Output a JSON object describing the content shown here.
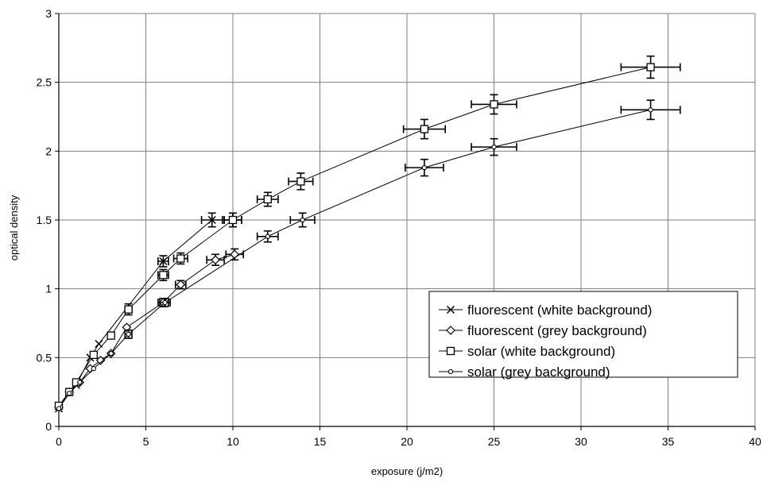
{
  "chart_data": {
    "type": "scatter",
    "title": "",
    "xlabel": "exposure (j/m2)",
    "ylabel": "optical density",
    "xlim": [
      0,
      40
    ],
    "ylim": [
      0,
      3
    ],
    "xticks": [
      0,
      5,
      10,
      15,
      20,
      25,
      30,
      35,
      40
    ],
    "yticks": [
      0,
      0.5,
      1,
      1.5,
      2,
      2.5,
      3
    ],
    "xtick_labels": [
      "0",
      "5",
      "10",
      "15",
      "20",
      "25",
      "30",
      "35",
      "40"
    ],
    "ytick_labels": [
      "0",
      "0.5",
      "1",
      "1.5",
      "2",
      "2.5",
      "3"
    ],
    "grid": true,
    "legend_position": "bottom-right",
    "series": [
      {
        "name": "fluorescent (white background)",
        "marker": "x",
        "points": [
          {
            "x": 0,
            "y": 0.13,
            "xerr": 0,
            "yerr": 0
          },
          {
            "x": 0.6,
            "y": 0.25,
            "xerr": 0,
            "yerr": 0
          },
          {
            "x": 1.0,
            "y": 0.3,
            "xerr": 0,
            "yerr": 0
          },
          {
            "x": 1.8,
            "y": 0.5,
            "xerr": 0,
            "yerr": 0
          },
          {
            "x": 2.3,
            "y": 0.6,
            "xerr": 0,
            "yerr": 0
          },
          {
            "x": 6.0,
            "y": 1.2,
            "xerr": 0.3,
            "yerr": 0.04
          },
          {
            "x": 8.8,
            "y": 1.5,
            "xerr": 0.6,
            "yerr": 0.05
          },
          {
            "x": 10.0,
            "y": 1.5,
            "xerr": 0.5,
            "yerr": 0.05
          }
        ]
      },
      {
        "name": "fluorescent (grey background)",
        "marker": "diamond",
        "points": [
          {
            "x": 0,
            "y": 0.14,
            "xerr": 0,
            "yerr": 0
          },
          {
            "x": 0.6,
            "y": 0.25,
            "xerr": 0,
            "yerr": 0
          },
          {
            "x": 1.2,
            "y": 0.32,
            "xerr": 0,
            "yerr": 0
          },
          {
            "x": 1.8,
            "y": 0.42,
            "xerr": 0,
            "yerr": 0
          },
          {
            "x": 2.4,
            "y": 0.48,
            "xerr": 0,
            "yerr": 0
          },
          {
            "x": 3.0,
            "y": 0.53,
            "xerr": 0,
            "yerr": 0
          },
          {
            "x": 3.9,
            "y": 0.72,
            "xerr": 0,
            "yerr": 0
          },
          {
            "x": 6.0,
            "y": 0.9,
            "xerr": 0.3,
            "yerr": 0.03
          },
          {
            "x": 7.0,
            "y": 1.03,
            "xerr": 0.3,
            "yerr": 0.03
          },
          {
            "x": 9.0,
            "y": 1.21,
            "xerr": 0.5,
            "yerr": 0.04
          },
          {
            "x": 10.1,
            "y": 1.25,
            "xerr": 0.5,
            "yerr": 0.04
          }
        ]
      },
      {
        "name": "solar (white background)",
        "marker": "square",
        "points": [
          {
            "x": 0,
            "y": 0.15,
            "xerr": 0,
            "yerr": 0
          },
          {
            "x": 0.6,
            "y": 0.25,
            "xerr": 0,
            "yerr": 0
          },
          {
            "x": 1.0,
            "y": 0.32,
            "xerr": 0,
            "yerr": 0
          },
          {
            "x": 2.0,
            "y": 0.52,
            "xerr": 0,
            "yerr": 0
          },
          {
            "x": 3.0,
            "y": 0.66,
            "xerr": 0,
            "yerr": 0
          },
          {
            "x": 4.0,
            "y": 0.85,
            "xerr": 0.2,
            "yerr": 0.04
          },
          {
            "x": 6.0,
            "y": 1.1,
            "xerr": 0.3,
            "yerr": 0.04
          },
          {
            "x": 7.0,
            "y": 1.22,
            "xerr": 0.4,
            "yerr": 0.04
          },
          {
            "x": 10.0,
            "y": 1.5,
            "xerr": 0.5,
            "yerr": 0.05
          },
          {
            "x": 12.0,
            "y": 1.65,
            "xerr": 0.6,
            "yerr": 0.05
          },
          {
            "x": 13.9,
            "y": 1.78,
            "xerr": 0.7,
            "yerr": 0.06
          },
          {
            "x": 21.0,
            "y": 2.16,
            "xerr": 1.2,
            "yerr": 0.07
          },
          {
            "x": 25.0,
            "y": 2.34,
            "xerr": 1.3,
            "yerr": 0.07
          },
          {
            "x": 34.0,
            "y": 2.61,
            "xerr": 1.7,
            "yerr": 0.08
          }
        ]
      },
      {
        "name": "solar (grey background)",
        "marker": "circle",
        "points": [
          {
            "x": 0,
            "y": 0.13,
            "xerr": 0,
            "yerr": 0
          },
          {
            "x": 0.6,
            "y": 0.24,
            "xerr": 0,
            "yerr": 0
          },
          {
            "x": 1.2,
            "y": 0.32,
            "xerr": 0,
            "yerr": 0
          },
          {
            "x": 2.0,
            "y": 0.42,
            "xerr": 0,
            "yerr": 0
          },
          {
            "x": 3.0,
            "y": 0.53,
            "xerr": 0,
            "yerr": 0
          },
          {
            "x": 4.0,
            "y": 0.67,
            "xerr": 0.2,
            "yerr": 0.03
          },
          {
            "x": 6.1,
            "y": 0.9,
            "xerr": 0.3,
            "yerr": 0.03
          },
          {
            "x": 12.0,
            "y": 1.38,
            "xerr": 0.6,
            "yerr": 0.04
          },
          {
            "x": 14.0,
            "y": 1.5,
            "xerr": 0.7,
            "yerr": 0.05
          },
          {
            "x": 21.0,
            "y": 1.88,
            "xerr": 1.1,
            "yerr": 0.06
          },
          {
            "x": 25.0,
            "y": 2.03,
            "xerr": 1.3,
            "yerr": 0.06
          },
          {
            "x": 34.0,
            "y": 2.3,
            "xerr": 1.7,
            "yerr": 0.07
          }
        ]
      }
    ]
  }
}
